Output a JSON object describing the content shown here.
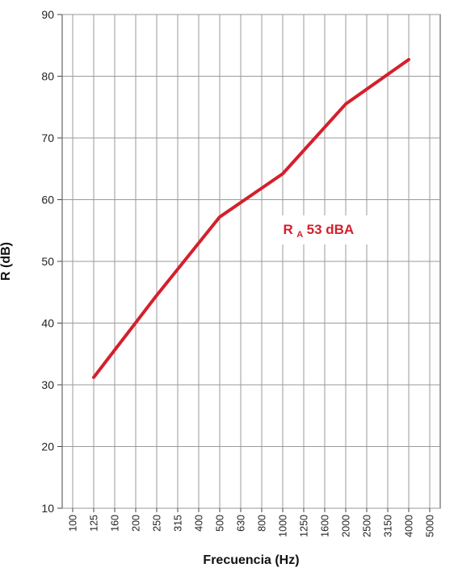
{
  "chart_data": {
    "type": "line",
    "title": "",
    "xlabel": "Frecuencia (Hz)",
    "ylabel": "R (dB)",
    "categories": [
      "100",
      "125",
      "160",
      "200",
      "250",
      "315",
      "400",
      "500",
      "630",
      "800",
      "1000",
      "1250",
      "1600",
      "2000",
      "2500",
      "3150",
      "4000",
      "5000"
    ],
    "ylim": [
      10,
      90
    ],
    "yticks": [
      10,
      20,
      30,
      40,
      50,
      60,
      70,
      80,
      90
    ],
    "grid": true,
    "series": [
      {
        "color": "#d4202c",
        "points": [
          {
            "x": "125",
            "y": 31.2
          },
          {
            "x": "250",
            "y": 44.5
          },
          {
            "x": "500",
            "y": 57.2
          },
          {
            "x": "1000",
            "y": 64.2
          },
          {
            "x": "2000",
            "y": 75.5
          },
          {
            "x": "4000",
            "y": 82.7
          }
        ]
      }
    ],
    "annotation": {
      "main": "R",
      "sub": "A",
      "rest": " 53 dBA",
      "color": "#d4202c"
    }
  }
}
